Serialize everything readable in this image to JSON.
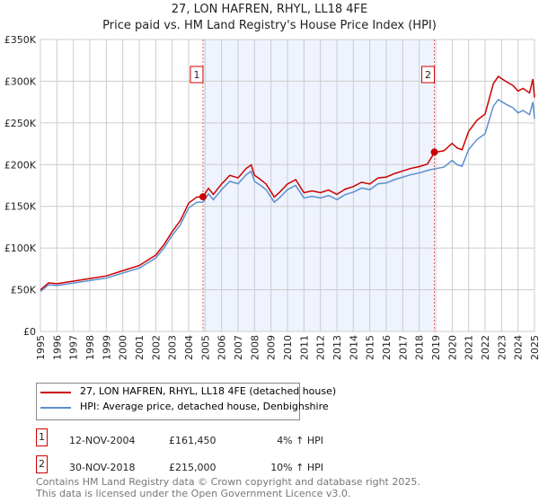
{
  "title": "27, LON HAFREN, RHYL, LL18 4FE",
  "subtitle": "Price paid vs. HM Land Registry's House Price Index (HPI)",
  "chart_data": {
    "type": "line",
    "title": "27, LON HAFREN, RHYL, LL18 4FE — Price paid vs. HM Land Registry's House Price Index (HPI)",
    "xlim": [
      1995,
      2025
    ],
    "ylim": [
      0,
      350000
    ],
    "x_ticks": [
      "1995",
      "1996",
      "1997",
      "1998",
      "1999",
      "2000",
      "2001",
      "2002",
      "2003",
      "2004",
      "2005",
      "2006",
      "2007",
      "2008",
      "2009",
      "2010",
      "2011",
      "2012",
      "2013",
      "2014",
      "2015",
      "2016",
      "2017",
      "2018",
      "2019",
      "2020",
      "2021",
      "2022",
      "2023",
      "2024",
      "2025"
    ],
    "y_ticks": [
      {
        "v": 0,
        "label": "£0"
      },
      {
        "v": 50000,
        "label": "£50K"
      },
      {
        "v": 100000,
        "label": "£100K"
      },
      {
        "v": 150000,
        "label": "£150K"
      },
      {
        "v": 200000,
        "label": "£200K"
      },
      {
        "v": 250000,
        "label": "£250K"
      },
      {
        "v": 300000,
        "label": "£300K"
      },
      {
        "v": 350000,
        "label": "£350K"
      }
    ],
    "grid": true,
    "hpi": {
      "name": "HPI: Average price, detached house, Denbighshire",
      "color": "#5b8fd0",
      "x": [
        1995,
        1995.5,
        1996,
        1997,
        1998,
        1999,
        2000,
        2001,
        2002,
        2002.5,
        2003,
        2003.5,
        2004,
        2004.5,
        2004.87,
        2005.2,
        2005.5,
        2006,
        2006.5,
        2007,
        2007.5,
        2007.8,
        2008,
        2008.3,
        2008.7,
        2009.2,
        2009.5,
        2010,
        2010.5,
        2011,
        2011.5,
        2012,
        2012.5,
        2013,
        2013.5,
        2014,
        2014.5,
        2015,
        2015.5,
        2016,
        2016.5,
        2017,
        2017.5,
        2018,
        2018.5,
        2018.92,
        2019.5,
        2020,
        2020.3,
        2020.6,
        2021,
        2021.5,
        2022,
        2022.5,
        2022.8,
        2023.3,
        2023.7,
        2024,
        2024.3,
        2024.7,
        2024.9,
        2025
      ],
      "y": [
        48000,
        56000,
        55000,
        58000,
        61000,
        64000,
        70000,
        76000,
        88000,
        100000,
        115000,
        128000,
        148000,
        155000,
        155000,
        165000,
        158000,
        170000,
        180000,
        177000,
        188000,
        192000,
        180000,
        176000,
        170000,
        155000,
        160000,
        170000,
        175000,
        160000,
        162000,
        160000,
        163000,
        158000,
        164000,
        167000,
        172000,
        170000,
        177000,
        178000,
        182000,
        185000,
        188000,
        190000,
        193000,
        195000,
        197000,
        205000,
        200000,
        198000,
        218000,
        230000,
        237000,
        270000,
        278000,
        272000,
        268000,
        262000,
        265000,
        260000,
        275000,
        255000
      ]
    },
    "price_paid": {
      "name": "27, LON HAFREN, RHYL, LL18 4FE (detached house)",
      "color": "#cc0000"
    },
    "sales": [
      {
        "id": "1",
        "date": "12-NOV-2004",
        "x": 2004.87,
        "price": 161450,
        "price_label": "£161,450",
        "hpi_label": "4% ↑ HPI",
        "ratio": 1.04
      },
      {
        "id": "2",
        "date": "30-NOV-2018",
        "x": 2018.92,
        "price": 215000,
        "price_label": "£215,000",
        "hpi_label": "10% ↑ HPI",
        "ratio": 1.1
      }
    ]
  },
  "footer": [
    "Contains HM Land Registry data © Crown copyright and database right 2025.",
    "This data is licensed under the Open Government Licence v3.0."
  ]
}
